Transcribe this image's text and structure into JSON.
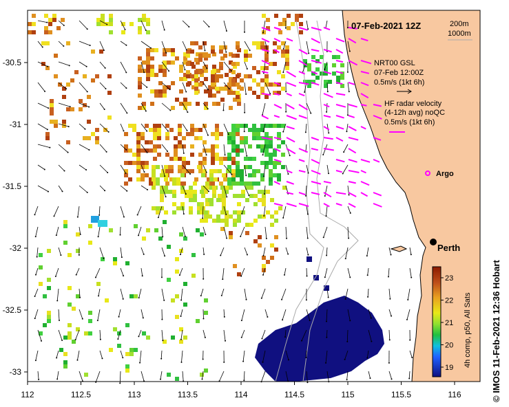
{
  "title": "07-Feb-2021 12Z",
  "depth_legend": [
    "200m",
    "1000m"
  ],
  "gsl": {
    "line1": "NRT00 GSL",
    "line2": "07-Feb 12:00Z",
    "scale": "0.5m/s (1kt 6h)"
  },
  "hf": {
    "line1": "HF radar velocity",
    "line2": "(4-12h avg) noQC",
    "scale": "0.5m/s (1kt 6h)"
  },
  "argo_label": "Argo",
  "city_label": "Perth",
  "colorbar": {
    "ticks": [
      "23",
      "22",
      "21",
      "20",
      "19"
    ],
    "label": "4h comp, p50, All Sats",
    "colors": [
      "#8b1a00",
      "#c0501a",
      "#e8a020",
      "#e8e818",
      "#90e030",
      "#20c040",
      "#10c0e0",
      "#2060ff",
      "#101080"
    ]
  },
  "credit": "© IMOS 11-Feb-2021 12:36 Hobart",
  "x_ticks": [
    "112",
    "112.5",
    "113",
    "113.5",
    "114",
    "114.5",
    "115",
    "115.5",
    "116"
  ],
  "y_ticks": [
    "-30.5",
    "-31",
    "-31.5",
    "-32",
    "-32.5",
    "-33"
  ],
  "colors": {
    "land": "#f8c8a0",
    "hf_vector": "#ff00ff",
    "ocean": "#ffffff",
    "cold_water": "#101080"
  }
}
